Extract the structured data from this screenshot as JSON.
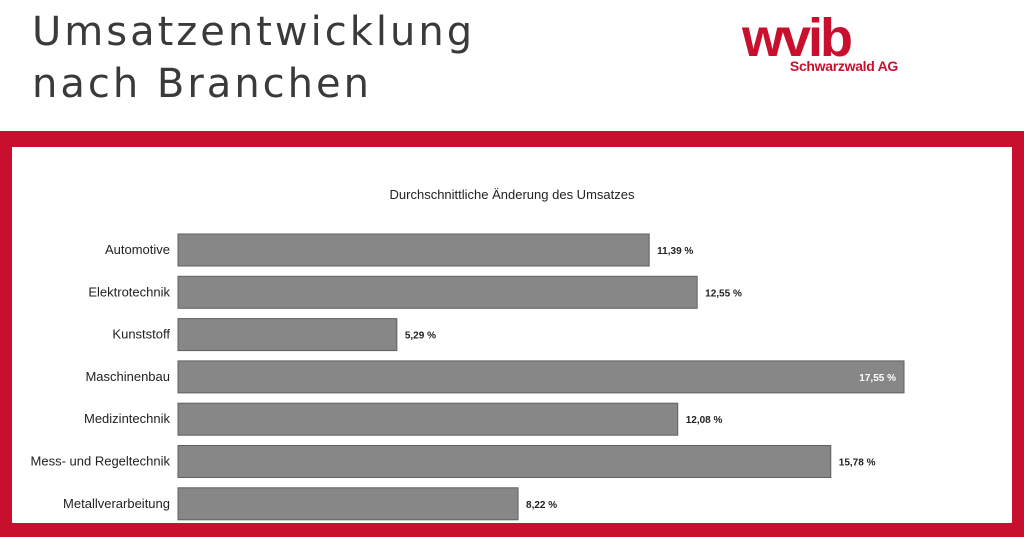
{
  "header": {
    "title_line1": "Umsatzentwicklung",
    "title_line2": "nach Branchen"
  },
  "logo": {
    "wordmark": "wvib",
    "subtitle": "Schwarzwald AG"
  },
  "colors": {
    "brand_red": "#c8102e",
    "bar_fill": "#878787",
    "bar_stroke": "#5f5f5f"
  },
  "chart_data": {
    "type": "bar",
    "orientation": "horizontal",
    "title": "Durchschnittliche Änderung des Umsatzes",
    "categories": [
      "Automotive",
      "Elektrotechnik",
      "Kunststoff",
      "Maschinenbau",
      "Medizintechnik",
      "Mess- und Regeltechnik",
      "Metallverarbeitung"
    ],
    "values": [
      11.39,
      12.55,
      5.29,
      17.55,
      12.08,
      15.78,
      8.22
    ],
    "data_labels": [
      "11,39 %",
      "12,55 %",
      "5,29 %",
      "17,55 %",
      "12,08 %",
      "15,78 %",
      "8,22 %"
    ],
    "xlim": [
      0,
      17.55
    ],
    "grid": false,
    "legend": "none"
  }
}
